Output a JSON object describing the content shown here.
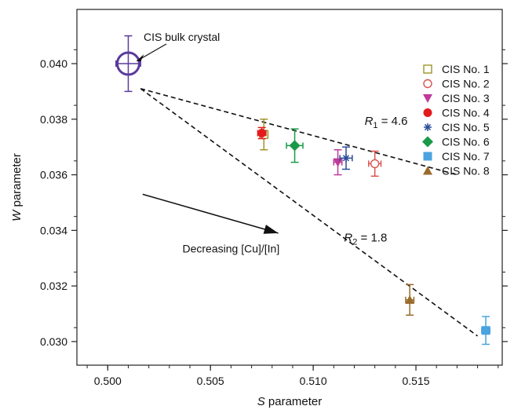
{
  "chart_data": {
    "type": "scatter",
    "xlabel": {
      "italic": "S",
      "rest": " parameter"
    },
    "ylabel": {
      "italic": "W",
      "rest": " parameter"
    },
    "xlim": [
      0.4985,
      0.5192
    ],
    "ylim": [
      0.02915,
      0.04195
    ],
    "xticks": [
      {
        "value": 0.5,
        "label": "0.500"
      },
      {
        "value": 0.505,
        "label": "0.505"
      },
      {
        "value": 0.51,
        "label": "0.510"
      },
      {
        "value": 0.515,
        "label": "0.515"
      }
    ],
    "yticks": [
      {
        "value": 0.03,
        "label": "0.030"
      },
      {
        "value": 0.032,
        "label": "0.032"
      },
      {
        "value": 0.034,
        "label": "0.034"
      },
      {
        "value": 0.036,
        "label": "0.036"
      },
      {
        "value": 0.038,
        "label": "0.038"
      },
      {
        "value": 0.04,
        "label": "0.040"
      }
    ],
    "grid": false,
    "legend_position": "top-right",
    "bulk": {
      "label": "CIS bulk crystal",
      "x": 0.501,
      "y": 0.04,
      "xerr": 0.0006,
      "yerr": 0.001,
      "color": "#5b3a9e"
    },
    "series": [
      {
        "name": "CIS No. 1",
        "marker": "open-square",
        "color": "#a09428",
        "x": 0.5076,
        "y": 0.03745,
        "xerr": 0.0002,
        "yerr": 0.00055
      },
      {
        "name": "CIS No. 2",
        "marker": "open-circle",
        "color": "#d9534f",
        "x": 0.513,
        "y": 0.0364,
        "xerr": 0.0003,
        "yerr": 0.00045
      },
      {
        "name": "CIS No. 3",
        "marker": "down-triangle",
        "color": "#c0399b",
        "x": 0.5112,
        "y": 0.03645,
        "xerr": 0.0002,
        "yerr": 0.00045
      },
      {
        "name": "CIS No. 4",
        "marker": "filled-circle",
        "color": "#e31a1c",
        "x": 0.5075,
        "y": 0.0375,
        "xerr": 0.0002,
        "yerr": 0.0002
      },
      {
        "name": "CIS No. 5",
        "marker": "asterisk",
        "color": "#2a4d9a",
        "x": 0.5116,
        "y": 0.0366,
        "xerr": 0.0003,
        "yerr": 0.0004
      },
      {
        "name": "CIS No. 6",
        "marker": "diamond",
        "color": "#1a9a48",
        "x": 0.5091,
        "y": 0.03705,
        "xerr": 0.0004,
        "yerr": 0.0006
      },
      {
        "name": "CIS No. 7",
        "marker": "filled-square",
        "color": "#4aa3df",
        "x": 0.5184,
        "y": 0.0304,
        "xerr": 0.0002,
        "yerr": 0.0005
      },
      {
        "name": "CIS No. 8",
        "marker": "up-triangle",
        "color": "#9a6a2a",
        "x": 0.5147,
        "y": 0.0315,
        "xerr": 0.0002,
        "yerr": 0.00055
      }
    ],
    "fit_lines": [
      {
        "label_main": "R",
        "label_sub": "1",
        "label_rest": " = 4.6",
        "x": [
          0.5016,
          0.517
        ],
        "y": [
          0.0391,
          0.036
        ],
        "label_x": 0.5125,
        "label_y": 0.0378
      },
      {
        "label_main": "R",
        "label_sub": "2",
        "label_rest": " = 1.8",
        "x": [
          0.5016,
          0.518
        ],
        "y": [
          0.0391,
          0.0302
        ],
        "label_x": 0.5115,
        "label_y": 0.0336
      }
    ],
    "annotation": {
      "text": "Decreasing [Cu]/[In]",
      "arrow_from": [
        0.5017,
        0.0353
      ],
      "arrow_to": [
        0.5083,
        0.0339
      ],
      "text_x": 0.506,
      "text_y": 0.0332
    }
  }
}
